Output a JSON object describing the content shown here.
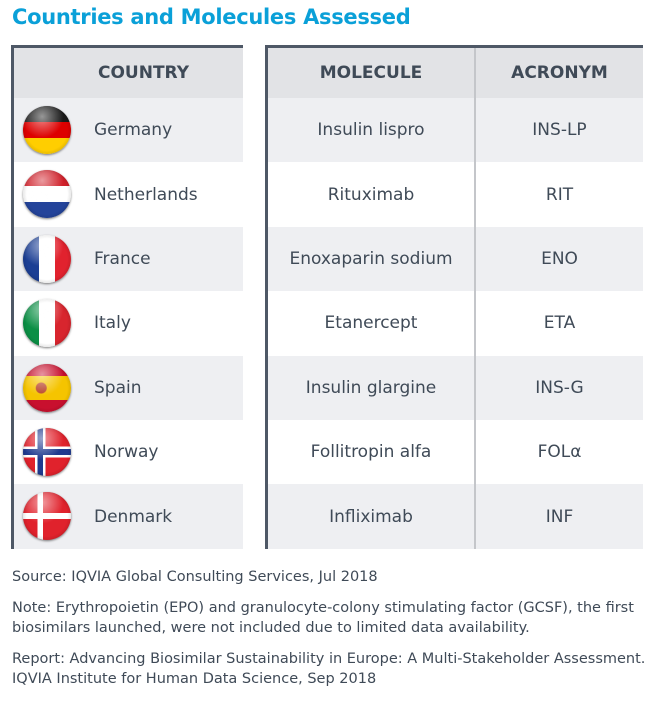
{
  "title": "Countries and Molecules Assessed",
  "countries": {
    "header": "COUNTRY",
    "items": [
      {
        "name": "Germany",
        "flag": "germany-flag"
      },
      {
        "name": "Netherlands",
        "flag": "netherlands-flag"
      },
      {
        "name": "France",
        "flag": "france-flag"
      },
      {
        "name": "Italy",
        "flag": "italy-flag"
      },
      {
        "name": "Spain",
        "flag": "spain-flag"
      },
      {
        "name": "Norway",
        "flag": "norway-flag"
      },
      {
        "name": "Denmark",
        "flag": "denmark-flag"
      }
    ]
  },
  "molecules": {
    "headers": [
      "MOLECULE",
      "ACRONYM"
    ],
    "rows": [
      {
        "molecule": "Insulin lispro",
        "acronym": "INS-LP"
      },
      {
        "molecule": "Rituximab",
        "acronym": "RIT"
      },
      {
        "molecule": "Enoxaparin sodium",
        "acronym": "ENO"
      },
      {
        "molecule": "Etanercept",
        "acronym": "ETA"
      },
      {
        "molecule": "Insulin glargine",
        "acronym": "INS-G"
      },
      {
        "molecule": "Follitropin alfa",
        "acronym": "FOLα"
      },
      {
        "molecule": "Infliximab",
        "acronym": "INF"
      }
    ]
  },
  "footer": {
    "source": "Source: IQVIA Global Consulting Services, Jul 2018",
    "note": "Note: Erythropoietin (EPO) and granulocyte-colony stimulating factor (GCSF), the first biosimilars launched, were not included due to limited data availability.",
    "report": "Report: Advancing Biosimilar Sustainability in Europe: A Multi-Stakeholder Assessment. IQVIA Institute for Human Data Science, Sep 2018"
  },
  "colors": {
    "title": "#0aa0d8",
    "header_bg": "#e2e3e6",
    "row_alt": "#eeeff2",
    "border": "#4e5866"
  }
}
